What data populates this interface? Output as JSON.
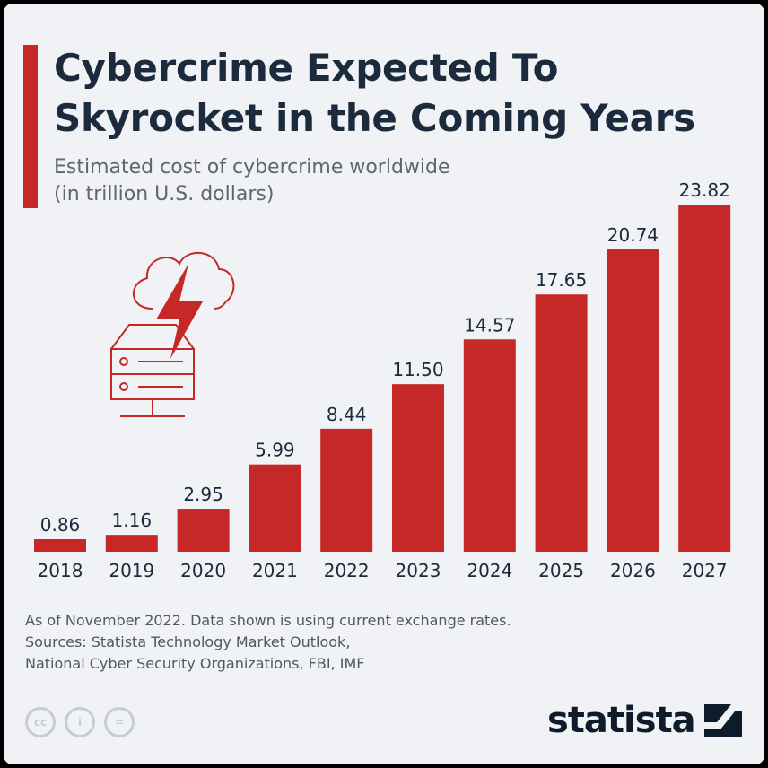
{
  "header": {
    "title": "Cybercrime Expected To Skyrocket in the Coming Years",
    "subtitle_line1": "Estimated cost of cybercrime worldwide",
    "subtitle_line2": "(in trillion U.S. dollars)"
  },
  "chart_data": {
    "type": "bar",
    "title": "Cybercrime Expected To Skyrocket in the Coming Years",
    "subtitle": "Estimated cost of cybercrime worldwide (in trillion U.S. dollars)",
    "categories": [
      "2018",
      "2019",
      "2020",
      "2021",
      "2022",
      "2023",
      "2024",
      "2025",
      "2026",
      "2027"
    ],
    "values": [
      0.86,
      1.16,
      2.95,
      5.99,
      8.44,
      11.5,
      14.57,
      17.65,
      20.74,
      23.82
    ],
    "value_labels": [
      "0.86",
      "1.16",
      "2.95",
      "5.99",
      "8.44",
      "11.50",
      "14.57",
      "17.65",
      "20.74",
      "23.82"
    ],
    "xlabel": "",
    "ylabel": "",
    "ylim": [
      0,
      24
    ],
    "grid": false,
    "legend": "none",
    "bar_color": "#c62828"
  },
  "footer": {
    "note": "As of November 2022. Data shown is using current exchange rates.",
    "sources_line1": "Sources: Statista Technology Market Outlook,",
    "sources_line2": "National Cyber Security Organizations, FBI, IMF",
    "license_icons": [
      "creative-commons-icon",
      "attribution-icon",
      "no-derivatives-icon"
    ],
    "license_glyphs": [
      "cc",
      "i",
      "="
    ],
    "brand": "statista"
  },
  "colors": {
    "accent": "#c62828",
    "title": "#1b2a3c",
    "background": "#f0f2f5",
    "muted": "#5f6670",
    "illustration": "#c62828"
  },
  "illustration": {
    "icon": "cloud-server-lightning-icon"
  }
}
